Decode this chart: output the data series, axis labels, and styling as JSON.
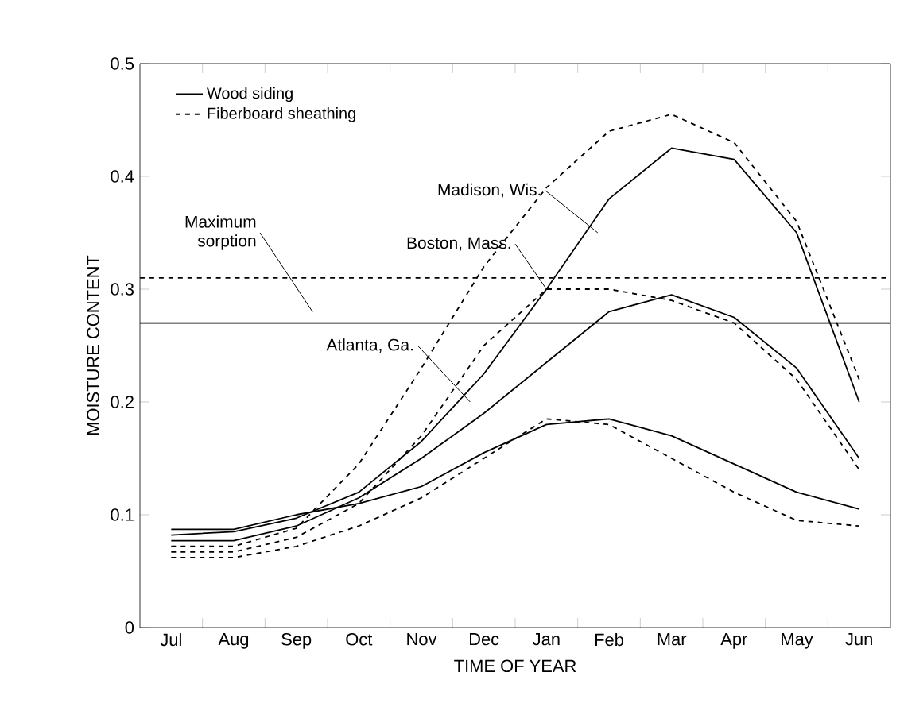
{
  "chart_data": {
    "type": "line",
    "xlabel": "TIME OF YEAR",
    "ylabel": "MOISTURE CONTENT",
    "ylim": [
      0,
      0.5
    ],
    "yticks": [
      0,
      0.1,
      0.2,
      0.3,
      0.4,
      0.5
    ],
    "categories": [
      "Jul",
      "Aug",
      "Sep",
      "Oct",
      "Nov",
      "Dec",
      "Jan",
      "Feb",
      "Mar",
      "Apr",
      "May",
      "Jun"
    ],
    "legend": "top left",
    "marker": "none",
    "series": [
      {
        "name": "Wood siding",
        "color": "#000000",
        "line_style": "solid",
        "values": [
          0.082,
          0.085,
          0.097,
          0.12,
          0.165,
          0.225,
          0.3,
          0.38,
          0.425,
          0.415,
          0.35,
          0.2
        ]
      },
      {
        "name": "Fiberboard sheathing",
        "color": "#000000",
        "line_style": "dashed",
        "values": [
          0.072,
          0.072,
          0.088,
          0.145,
          0.23,
          0.32,
          0.39,
          0.44,
          0.455,
          0.43,
          0.36,
          0.22
        ]
      },
      {
        "color": "#000000",
        "line_style": "solid",
        "values": [
          0.077,
          0.077,
          0.09,
          0.115,
          0.15,
          0.19,
          0.235,
          0.28,
          0.295,
          0.275,
          0.23,
          0.15
        ]
      },
      {
        "color": "#000000",
        "line_style": "dashed",
        "values": [
          0.067,
          0.067,
          0.08,
          0.11,
          0.17,
          0.25,
          0.3,
          0.3,
          0.29,
          0.27,
          0.22,
          0.14
        ]
      },
      {
        "color": "#000000",
        "line_style": "solid",
        "values": [
          0.087,
          0.087,
          0.1,
          0.11,
          0.125,
          0.155,
          0.18,
          0.185,
          0.17,
          0.145,
          0.12,
          0.105
        ]
      },
      {
        "color": "#000000",
        "line_style": "dashed",
        "values": [
          0.062,
          0.062,
          0.072,
          0.09,
          0.115,
          0.15,
          0.185,
          0.18,
          0.15,
          0.12,
          0.095,
          0.09
        ]
      }
    ],
    "ref_lines": [
      {
        "axis": "y",
        "value": 0.27,
        "color": "#000000",
        "line_style": "solid"
      },
      {
        "axis": "y",
        "value": 0.31,
        "color": "#000000",
        "line_style": "dashed"
      }
    ],
    "annotations": [
      "Madison, Wis.",
      {
        "text": "Boston, Mass.",
        "x": "Jan",
        "y": 0.3
      },
      "Maximum sorption",
      "Atlanta, Ga."
    ]
  }
}
